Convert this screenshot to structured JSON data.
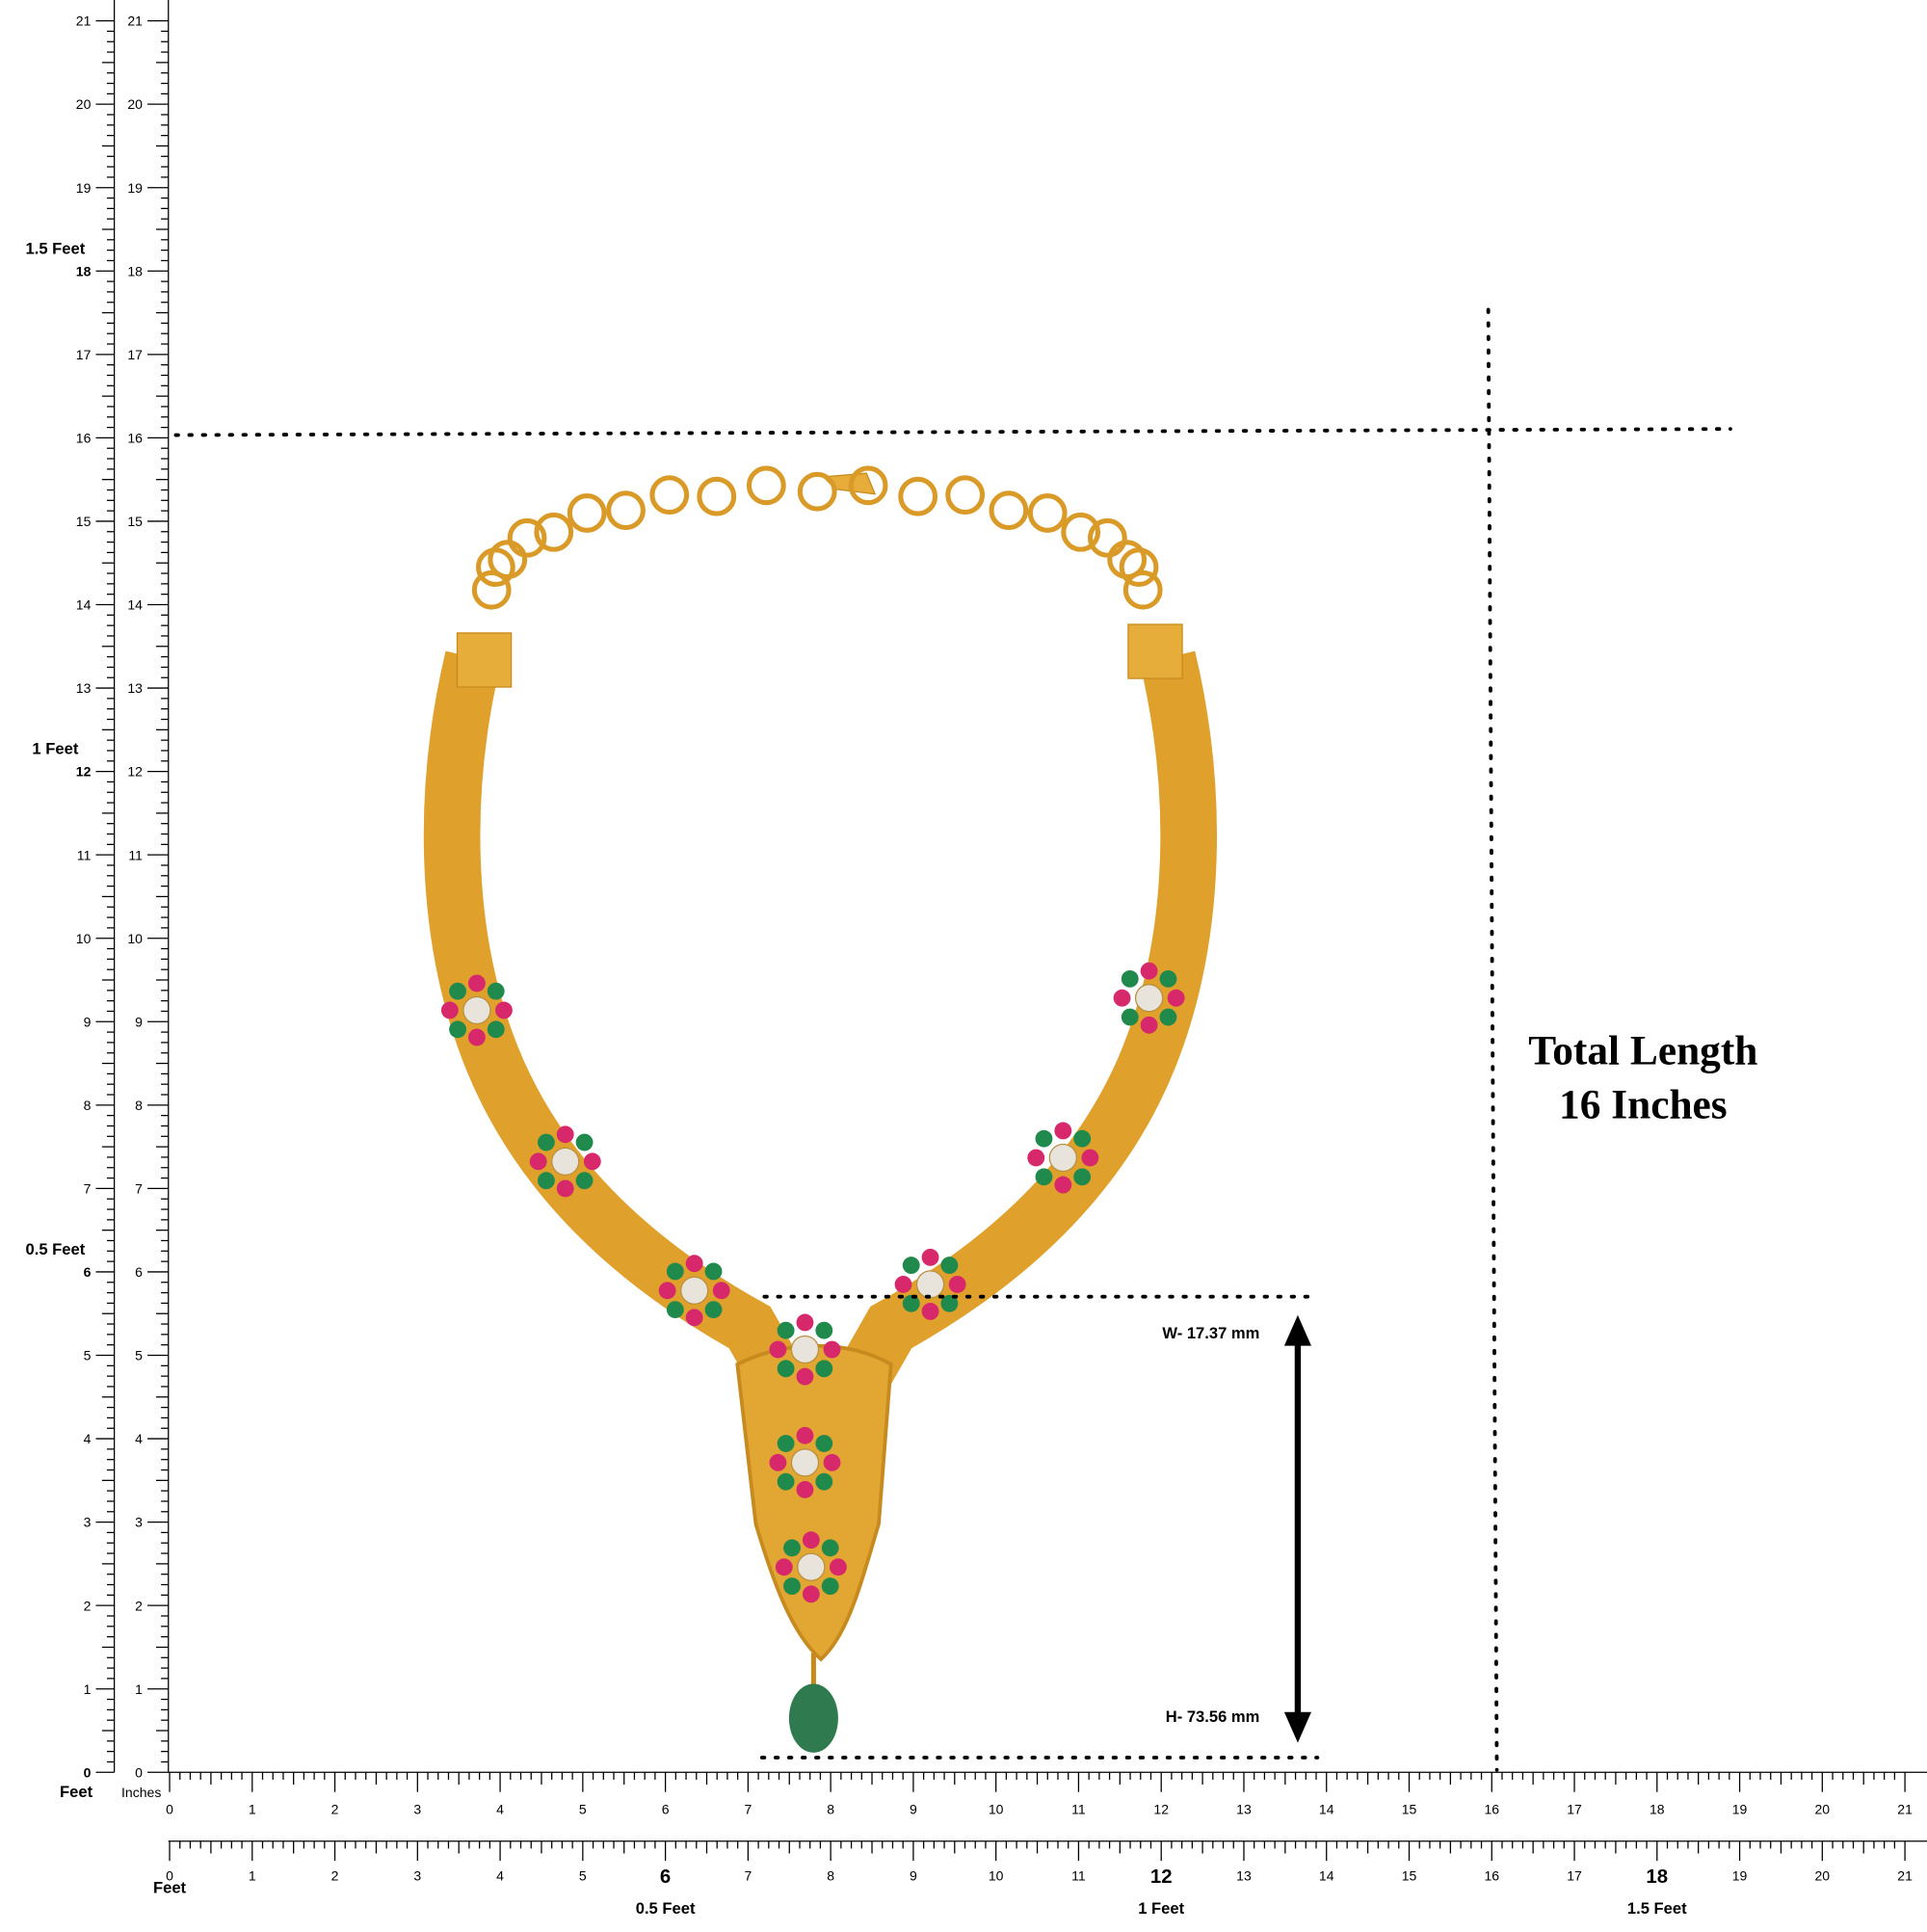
{
  "ruler": {
    "inches": [
      0,
      1,
      2,
      3,
      4,
      5,
      6,
      7,
      8,
      9,
      10,
      11,
      12,
      13,
      14,
      15,
      16,
      17,
      18,
      19,
      20,
      21
    ],
    "feet_unit": "Feet",
    "inch_unit": "Inches",
    "feet_labels": [
      "0.5 Feet",
      "1 Feet",
      "1.5 Feet"
    ]
  },
  "annotation": {
    "total_length": [
      "Total Length",
      "16 Inches"
    ],
    "width": "W- 17.37 mm",
    "height": "H- 73.56 mm"
  }
}
